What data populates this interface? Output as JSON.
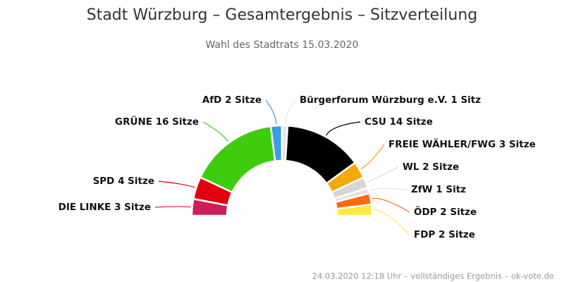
{
  "chart_data": {
    "type": "pie",
    "semicircle": true,
    "title": "Stadt Würzburg – Gesamtergebnis – Sitzverteilung",
    "subtitle": "Wahl des Stadtrats 15.03.2020",
    "footer": "24.03.2020 12:18 Uhr – vollständiges Ergebnis – ok-vote.de",
    "values": [
      3,
      4,
      16,
      2,
      1,
      14,
      3,
      2,
      1,
      2,
      2
    ],
    "value_labels": [
      "DIE LINKE 3 Sitze",
      "SPD 4 Sitze",
      "GRÜNE 16 Sitze",
      "AfD 2 Sitze",
      "Bürgerforum Würzburg e.V. 1 Sitz",
      "CSU 14 Sitze",
      "FREIE WÄHLER/FWG 3 Sitze",
      "WL 2 Sitze",
      "ZfW 1 Sitz",
      "ÖDP 2 Sitze",
      "FDP 2 Sitze"
    ],
    "colors": [
      "#cc1f58",
      "#e3000f",
      "#3fcc0c",
      "#3a9de6",
      "#e6e6e6",
      "#000000",
      "#f5a80c",
      "#d6d6d6",
      "#e2e2e2",
      "#ff6a0f",
      "#ffea3b"
    ]
  }
}
